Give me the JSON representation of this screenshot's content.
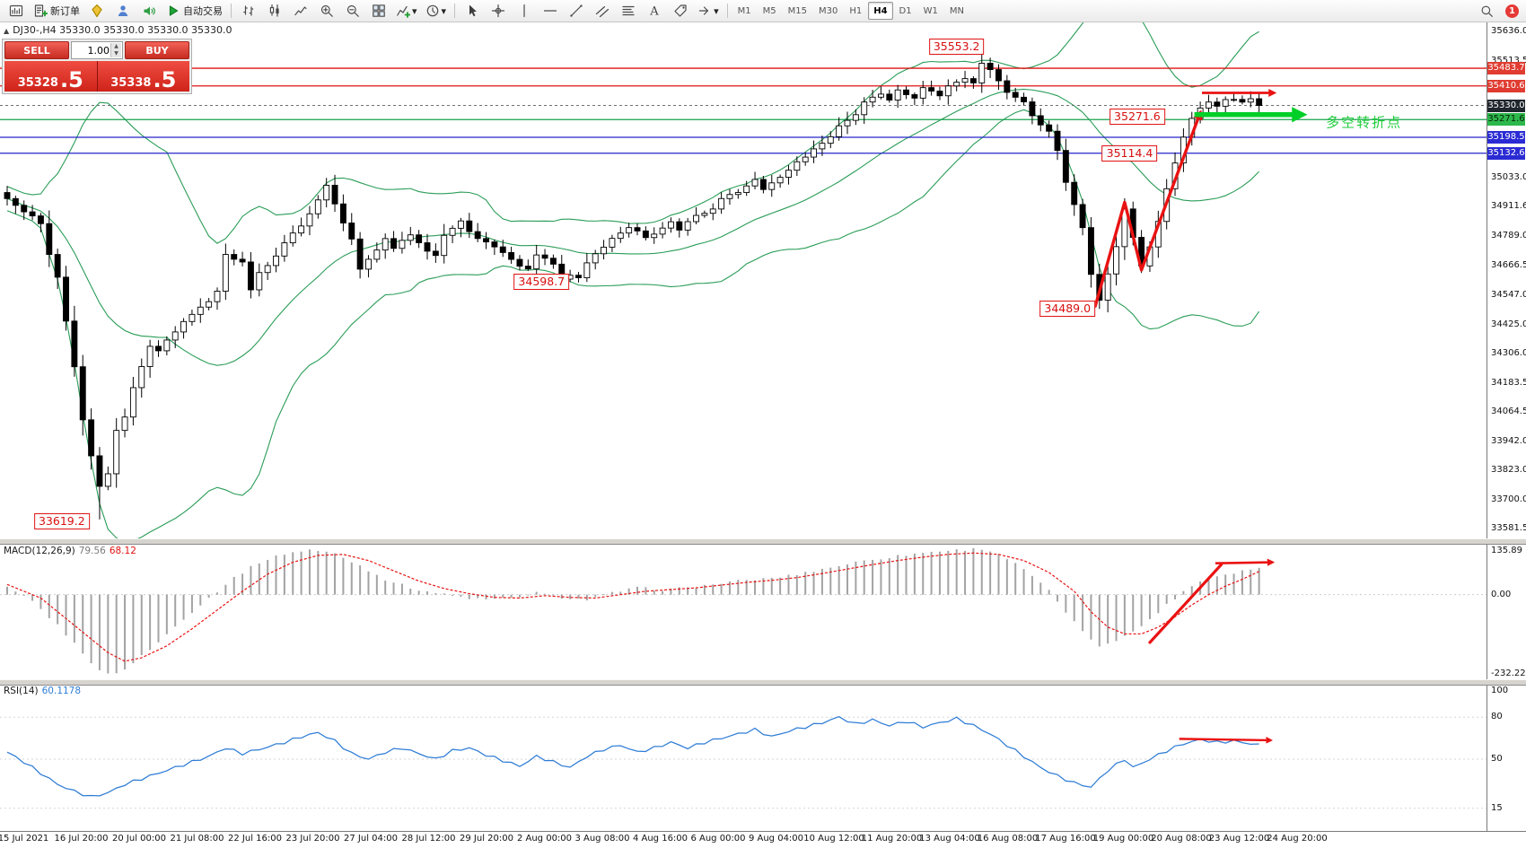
{
  "toolbar": {
    "groups": [
      {
        "items": [
          {
            "icon": "chart-window"
          },
          {
            "icon": "new-order",
            "label": "新订单"
          },
          {
            "icon": "diamond"
          },
          {
            "icon": "profile"
          },
          {
            "icon": "announcement"
          },
          {
            "icon": "auto-trading",
            "label": "自动交易"
          }
        ]
      },
      {
        "items": [
          {
            "icon": "bar-chart"
          },
          {
            "icon": "candlestick-chart"
          },
          {
            "icon": "line-chart"
          },
          {
            "icon": "zoom-in"
          },
          {
            "icon": "zoom-out"
          },
          {
            "icon": "tile-windows"
          },
          {
            "icon": "indicators",
            "caret": true
          },
          {
            "icon": "time-period",
            "caret": true
          }
        ]
      },
      {
        "items": [
          {
            "icon": "cursor"
          },
          {
            "icon": "crosshair"
          },
          {
            "icon": "vertical-line"
          },
          {
            "icon": "horizontal-line"
          },
          {
            "icon": "trendline"
          },
          {
            "icon": "channel"
          },
          {
            "icon": "fibonacci"
          },
          {
            "icon": "text"
          },
          {
            "icon": "label"
          },
          {
            "icon": "shapes",
            "caret": true
          }
        ]
      }
    ],
    "timeframes": [
      "M1",
      "M5",
      "M15",
      "M30",
      "H1",
      "H4",
      "D1",
      "W1",
      "MN"
    ],
    "active_timeframe": "H4",
    "notification_count": "1"
  },
  "window": {
    "chart_title": "DJ30-,H4  35330.0 35330.0 35330.0 35330.0"
  },
  "one_click": {
    "sell_label": "SELL",
    "buy_label": "BUY",
    "volume": "1.00",
    "sell_price": "35328",
    "sell_pips": ".5",
    "buy_price": "35338",
    "buy_pips": ".5"
  },
  "chart_data": {
    "type": "candlestick",
    "symbol": "DJ30-",
    "timeframe": "H4",
    "y_axis": {
      "max": 35636.0,
      "min": 33581.5,
      "labels": [
        "35636.0",
        "35513.5",
        "35033.0",
        "34911.6",
        "34789.0",
        "34666.5",
        "34547.0",
        "34425.0",
        "34306.0",
        "34183.5",
        "34064.5",
        "33942.0",
        "33823.0",
        "33700.0",
        "33581.5"
      ]
    },
    "price_badges": [
      {
        "text": "35483.7",
        "price": 35483.7,
        "bg": "#e03c31",
        "fg": "#ffffff"
      },
      {
        "text": "35410.6",
        "price": 35410.6,
        "bg": "#e03c31",
        "fg": "#ffffff"
      },
      {
        "text": "35330.0",
        "price": 35330.0,
        "bg": "#20262e",
        "fg": "#ffffff"
      },
      {
        "text": "35271.6",
        "price": 35271.6,
        "bg": "#2db84b",
        "fg": "#06230c"
      },
      {
        "text": "35198.5",
        "price": 35198.5,
        "bg": "#2b2bd4",
        "fg": "#ffffff"
      },
      {
        "text": "35132.6",
        "price": 35132.6,
        "bg": "#2b2bd4",
        "fg": "#ffffff"
      }
    ],
    "level_lines": [
      {
        "price": 35483.7,
        "color": "#e01212",
        "width": 1.3
      },
      {
        "price": 35410.6,
        "color": "#e01212",
        "width": 1.3
      },
      {
        "price": 35330.0,
        "color": "#707070",
        "width": 1,
        "dash": "3 3"
      },
      {
        "price": 35271.6,
        "color": "#14a24a",
        "width": 1.2
      },
      {
        "price": 35198.5,
        "color": "#2424cc",
        "width": 1.2
      },
      {
        "price": 35132.6,
        "color": "#2424cc",
        "width": 1.2
      }
    ],
    "bollinger": {
      "period": 20,
      "deviation": 2,
      "color": "#2a9d57"
    },
    "candle_colors": {
      "bull": "#ffffff",
      "bear": "#000000",
      "wick": "#000000"
    },
    "price_path": [
      [
        0,
        34940
      ],
      [
        2,
        34898
      ],
      [
        4,
        34846
      ],
      [
        5,
        34720
      ],
      [
        6,
        34619
      ],
      [
        7,
        34439
      ],
      [
        8,
        34248
      ],
      [
        9,
        34033
      ],
      [
        10,
        33889
      ],
      [
        11,
        33749
      ],
      [
        12,
        33800
      ],
      [
        13,
        33980
      ],
      [
        14,
        34040
      ],
      [
        15,
        34160
      ],
      [
        17,
        34340
      ],
      [
        18,
        34320
      ],
      [
        20,
        34390
      ],
      [
        21,
        34440
      ],
      [
        23,
        34490
      ],
      [
        25,
        34560
      ],
      [
        26,
        34710
      ],
      [
        28,
        34680
      ],
      [
        29,
        34575
      ],
      [
        30,
        34640
      ],
      [
        32,
        34710
      ],
      [
        33,
        34760
      ],
      [
        35,
        34830
      ],
      [
        37,
        34940
      ],
      [
        38,
        35000
      ],
      [
        39,
        34920
      ],
      [
        41,
        34780
      ],
      [
        42,
        34660
      ],
      [
        44,
        34730
      ],
      [
        45,
        34780
      ],
      [
        46,
        34740
      ],
      [
        48,
        34800
      ],
      [
        49,
        34760
      ],
      [
        51,
        34710
      ],
      [
        52,
        34800
      ],
      [
        54,
        34846
      ],
      [
        55,
        34806
      ],
      [
        57,
        34760
      ],
      [
        59,
        34727
      ],
      [
        60,
        34690
      ],
      [
        62,
        34647
      ],
      [
        63,
        34711
      ],
      [
        65,
        34671
      ],
      [
        66,
        34619
      ],
      [
        68,
        34625
      ],
      [
        69,
        34687
      ],
      [
        71,
        34751
      ],
      [
        73,
        34798
      ],
      [
        74,
        34830
      ],
      [
        76,
        34778
      ],
      [
        77,
        34806
      ],
      [
        79,
        34846
      ],
      [
        80,
        34818
      ],
      [
        82,
        34870
      ],
      [
        84,
        34910
      ],
      [
        85,
        34938
      ],
      [
        87,
        34978
      ],
      [
        89,
        35018
      ],
      [
        90,
        34990
      ],
      [
        92,
        35038
      ],
      [
        93,
        35070
      ],
      [
        95,
        35117
      ],
      [
        96,
        35157
      ],
      [
        98,
        35205
      ],
      [
        99,
        35245
      ],
      [
        101,
        35285
      ],
      [
        102,
        35337
      ],
      [
        104,
        35377
      ],
      [
        105,
        35357
      ],
      [
        106,
        35389
      ],
      [
        108,
        35365
      ],
      [
        109,
        35405
      ],
      [
        111,
        35377
      ],
      [
        112,
        35417
      ],
      [
        114,
        35445
      ],
      [
        115,
        35417
      ],
      [
        116,
        35508
      ],
      [
        118,
        35437
      ],
      [
        119,
        35377
      ],
      [
        121,
        35337
      ],
      [
        122,
        35285
      ],
      [
        124,
        35217
      ],
      [
        125,
        35137
      ],
      [
        126,
        35018
      ],
      [
        128,
        34818
      ],
      [
        129,
        34639
      ],
      [
        130,
        34519
      ],
      [
        132,
        34739
      ],
      [
        133,
        34898
      ],
      [
        134,
        34778
      ],
      [
        135,
        34659
      ],
      [
        136,
        34739
      ],
      [
        137,
        34858
      ],
      [
        138,
        34978
      ],
      [
        139,
        35098
      ],
      [
        140,
        35197
      ],
      [
        141,
        35277
      ],
      [
        142,
        35325
      ],
      [
        143,
        35349
      ],
      [
        144,
        35325
      ],
      [
        145,
        35357
      ],
      [
        147,
        35337
      ],
      [
        148,
        35365
      ],
      [
        149,
        35330
      ]
    ],
    "anchors": {
      "high": {
        "116": 35553.2
      },
      "low": {
        "11": 33619.2,
        "68": 34598.7,
        "130": 34489.0
      },
      "close_last": 35330.0
    },
    "annotations": [
      {
        "text": "35553.2",
        "bar": 113,
        "price": 35573,
        "style": "box"
      },
      {
        "text": "35271.6",
        "bar": 134.5,
        "price": 35284,
        "style": "box"
      },
      {
        "text": "35114.4",
        "bar": 133.6,
        "price": 35132,
        "style": "box"
      },
      {
        "text": "34598.7",
        "bar": 63.6,
        "price": 34601,
        "style": "box"
      },
      {
        "text": "34489.0",
        "bar": 126.2,
        "price": 34490,
        "style": "box"
      },
      {
        "text": "33619.2",
        "bar": 6.5,
        "price": 33611,
        "style": "box"
      },
      {
        "text": "多空转折点",
        "bar": 161.5,
        "price": 35262,
        "style": "green-text"
      }
    ],
    "trend_arrows": {
      "zigzag": [
        [
          129.5,
          34500
        ],
        [
          133,
          34930
        ],
        [
          135,
          34650
        ],
        [
          142,
          35300
        ]
      ],
      "h_arrow": [
        [
          142.2,
          35382
        ],
        [
          150.8,
          35382
        ]
      ],
      "green_arrow": [
        [
          141.3,
          35292
        ],
        [
          154.2,
          35292
        ]
      ]
    },
    "time_labels": [
      "15 Jul 2021",
      "16 Jul 20:00",
      "20 Jul 00:00",
      "21 Jul 08:00",
      "22 Jul 16:00",
      "23 Jul 20:00",
      "27 Jul 04:00",
      "28 Jul 12:00",
      "29 Jul 20:00",
      "2 Aug 00:00",
      "3 Aug 08:00",
      "4 Aug 16:00",
      "6 Aug 00:00",
      "9 Aug 04:00",
      "10 Aug 12:00",
      "11 Aug 20:00",
      "13 Aug 04:00",
      "16 Aug 08:00",
      "17 Aug 16:00",
      "19 Aug 00:00",
      "20 Aug 08:00",
      "23 Aug 12:00",
      "24 Aug 20:00"
    ]
  },
  "macd": {
    "name": "MACD(12,26,9)",
    "value": "79.56",
    "signal": "68.12",
    "axis": [
      "135.89",
      "0.00",
      "-232.22"
    ],
    "max": 135.89,
    "min": -232.22,
    "hist": [
      [
        0,
        20
      ],
      [
        3,
        -20
      ],
      [
        6,
        -90
      ],
      [
        9,
        -170
      ],
      [
        11,
        -225
      ],
      [
        13,
        -232
      ],
      [
        15,
        -200
      ],
      [
        18,
        -140
      ],
      [
        21,
        -70
      ],
      [
        24,
        -10
      ],
      [
        27,
        50
      ],
      [
        30,
        95
      ],
      [
        33,
        120
      ],
      [
        36,
        132
      ],
      [
        39,
        120
      ],
      [
        42,
        85
      ],
      [
        45,
        45
      ],
      [
        48,
        20
      ],
      [
        51,
        5
      ],
      [
        54,
        -8
      ],
      [
        57,
        -15
      ],
      [
        60,
        -10
      ],
      [
        63,
        5
      ],
      [
        66,
        -8
      ],
      [
        69,
        -15
      ],
      [
        72,
        5
      ],
      [
        75,
        20
      ],
      [
        78,
        14
      ],
      [
        81,
        20
      ],
      [
        84,
        30
      ],
      [
        87,
        40
      ],
      [
        90,
        46
      ],
      [
        93,
        55
      ],
      [
        96,
        70
      ],
      [
        99,
        85
      ],
      [
        102,
        100
      ],
      [
        105,
        110
      ],
      [
        108,
        120
      ],
      [
        111,
        128
      ],
      [
        114,
        132
      ],
      [
        116,
        135
      ],
      [
        118,
        120
      ],
      [
        120,
        90
      ],
      [
        122,
        55
      ],
      [
        124,
        10
      ],
      [
        126,
        -50
      ],
      [
        128,
        -110
      ],
      [
        130,
        -150
      ],
      [
        132,
        -132
      ],
      [
        134,
        -110
      ],
      [
        136,
        -72
      ],
      [
        138,
        -30
      ],
      [
        140,
        10
      ],
      [
        142,
        40
      ],
      [
        144,
        55
      ],
      [
        146,
        65
      ],
      [
        148,
        75
      ],
      [
        149,
        80
      ]
    ],
    "signal_line": [
      [
        0,
        30
      ],
      [
        4,
        -10
      ],
      [
        8,
        -90
      ],
      [
        12,
        -170
      ],
      [
        14,
        -195
      ],
      [
        16,
        -185
      ],
      [
        19,
        -150
      ],
      [
        22,
        -100
      ],
      [
        25,
        -45
      ],
      [
        28,
        10
      ],
      [
        31,
        60
      ],
      [
        34,
        95
      ],
      [
        37,
        115
      ],
      [
        40,
        118
      ],
      [
        43,
        100
      ],
      [
        46,
        70
      ],
      [
        49,
        40
      ],
      [
        52,
        18
      ],
      [
        55,
        3
      ],
      [
        58,
        -8
      ],
      [
        61,
        -10
      ],
      [
        64,
        -3
      ],
      [
        67,
        -8
      ],
      [
        70,
        -10
      ],
      [
        73,
        0
      ],
      [
        76,
        10
      ],
      [
        79,
        15
      ],
      [
        82,
        20
      ],
      [
        85,
        28
      ],
      [
        88,
        36
      ],
      [
        91,
        42
      ],
      [
        94,
        50
      ],
      [
        97,
        62
      ],
      [
        100,
        75
      ],
      [
        103,
        88
      ],
      [
        106,
        100
      ],
      [
        109,
        110
      ],
      [
        112,
        118
      ],
      [
        115,
        122
      ],
      [
        118,
        118
      ],
      [
        121,
        100
      ],
      [
        124,
        65
      ],
      [
        127,
        10
      ],
      [
        129,
        -50
      ],
      [
        131,
        -95
      ],
      [
        133,
        -115
      ],
      [
        135,
        -115
      ],
      [
        137,
        -95
      ],
      [
        139,
        -65
      ],
      [
        141,
        -30
      ],
      [
        143,
        0
      ],
      [
        145,
        25
      ],
      [
        147,
        45
      ],
      [
        149,
        68
      ]
    ],
    "arrow1": [
      [
        136,
        -140
      ],
      [
        144.5,
        88
      ]
    ],
    "arrow2": [
      [
        143.8,
        92
      ],
      [
        150.6,
        95
      ]
    ]
  },
  "rsi": {
    "name": "RSI(14)",
    "value": "60.1178",
    "axis_labels": [
      {
        "text": "100",
        "v": 100
      },
      {
        "text": "80",
        "v": 80
      },
      {
        "text": "50",
        "v": 50
      },
      {
        "text": "15",
        "v": 15
      }
    ],
    "levels": [
      80,
      50,
      15
    ],
    "line": [
      [
        0,
        55
      ],
      [
        2,
        48
      ],
      [
        4,
        40
      ],
      [
        6,
        32
      ],
      [
        8,
        27
      ],
      [
        10,
        23
      ],
      [
        12,
        26
      ],
      [
        14,
        32
      ],
      [
        16,
        36
      ],
      [
        18,
        40
      ],
      [
        21,
        46
      ],
      [
        24,
        52
      ],
      [
        26,
        58
      ],
      [
        28,
        54
      ],
      [
        30,
        57
      ],
      [
        33,
        62
      ],
      [
        35,
        66
      ],
      [
        37,
        69
      ],
      [
        39,
        63
      ],
      [
        41,
        54
      ],
      [
        43,
        50
      ],
      [
        45,
        55
      ],
      [
        47,
        58
      ],
      [
        49,
        54
      ],
      [
        51,
        50
      ],
      [
        53,
        56
      ],
      [
        55,
        58
      ],
      [
        57,
        53
      ],
      [
        59,
        49
      ],
      [
        61,
        45
      ],
      [
        63,
        52
      ],
      [
        65,
        48
      ],
      [
        67,
        44
      ],
      [
        69,
        52
      ],
      [
        71,
        57
      ],
      [
        73,
        60
      ],
      [
        75,
        55
      ],
      [
        77,
        58
      ],
      [
        79,
        62
      ],
      [
        81,
        58
      ],
      [
        83,
        62
      ],
      [
        85,
        65
      ],
      [
        87,
        68
      ],
      [
        89,
        71
      ],
      [
        91,
        66
      ],
      [
        93,
        70
      ],
      [
        95,
        73
      ],
      [
        97,
        76
      ],
      [
        99,
        80
      ],
      [
        101,
        75
      ],
      [
        103,
        78
      ],
      [
        105,
        74
      ],
      [
        107,
        77
      ],
      [
        109,
        73
      ],
      [
        111,
        76
      ],
      [
        113,
        79
      ],
      [
        115,
        74
      ],
      [
        117,
        68
      ],
      [
        119,
        60
      ],
      [
        121,
        52
      ],
      [
        123,
        44
      ],
      [
        125,
        38
      ],
      [
        127,
        33
      ],
      [
        129,
        30
      ],
      [
        131,
        42
      ],
      [
        133,
        50
      ],
      [
        134,
        44
      ],
      [
        136,
        50
      ],
      [
        138,
        56
      ],
      [
        140,
        61
      ],
      [
        142,
        64
      ],
      [
        144,
        62
      ],
      [
        146,
        63
      ],
      [
        148,
        61
      ],
      [
        149,
        60.1
      ]
    ],
    "arrow": [
      [
        139.5,
        64.5
      ],
      [
        150.4,
        63.5
      ]
    ]
  }
}
